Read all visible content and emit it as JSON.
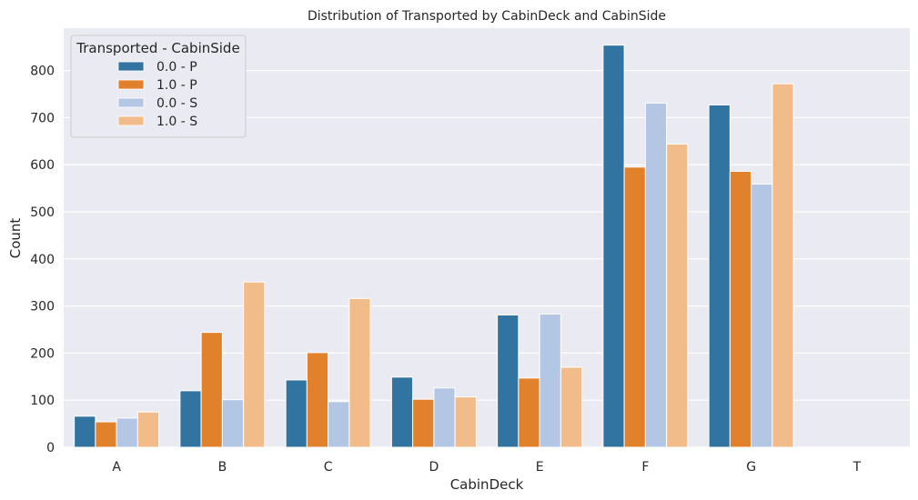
{
  "chart_data": {
    "type": "bar",
    "title": "Distribution of Transported by CabinDeck and CabinSide",
    "xlabel": "CabinDeck",
    "ylabel": "Count",
    "categories": [
      "A",
      "B",
      "C",
      "D",
      "E",
      "F",
      "G",
      "T"
    ],
    "ylim": [
      0,
      890
    ],
    "yticks": [
      0,
      100,
      200,
      300,
      400,
      500,
      600,
      700,
      800
    ],
    "grid": true,
    "legend": {
      "title": "Transported - CabinSide",
      "placement": "top-left"
    },
    "series": [
      {
        "name": "0.0 - P",
        "color": "#3274a1",
        "values": [
          66,
          120,
          143,
          149,
          281,
          854,
          727,
          0
        ]
      },
      {
        "name": "1.0 - P",
        "color": "#e1812c",
        "values": [
          54,
          244,
          201,
          102,
          147,
          595,
          586,
          0
        ]
      },
      {
        "name": "0.0 - S",
        "color": "#b3c7e5",
        "values": [
          62,
          101,
          97,
          126,
          283,
          731,
          559,
          0
        ]
      },
      {
        "name": "1.0 - S",
        "color": "#f2bc8a",
        "values": [
          75,
          351,
          316,
          107,
          170,
          644,
          772,
          0
        ]
      }
    ]
  }
}
